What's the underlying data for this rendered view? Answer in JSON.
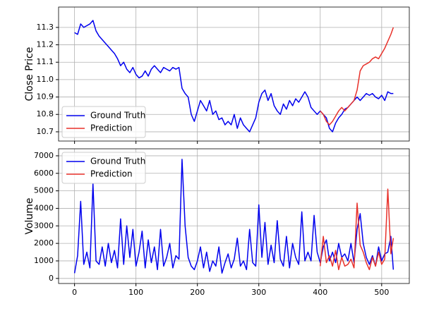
{
  "chart_data": [
    {
      "type": "line",
      "ylabel": "Close Price",
      "grid": true,
      "legend": "lower left",
      "xtick_labels": false,
      "xlim": [
        -26,
        545
      ],
      "xticks": [
        0,
        100,
        200,
        300,
        400,
        500
      ],
      "ylim": [
        10.647,
        11.417
      ],
      "yticks": [
        10.7,
        10.8,
        10.9,
        {
          "value": 11.0,
          "label": "11.0"
        },
        11.1,
        11.2,
        11.3
      ],
      "series": [
        {
          "name": "Ground Truth",
          "color": "#0000ee",
          "x": [
            0,
            5,
            10,
            15,
            20,
            25,
            30,
            35,
            40,
            45,
            50,
            55,
            60,
            65,
            70,
            75,
            80,
            85,
            90,
            95,
            100,
            105,
            110,
            115,
            120,
            125,
            130,
            135,
            140,
            145,
            150,
            155,
            160,
            165,
            170,
            175,
            180,
            185,
            190,
            195,
            200,
            205,
            210,
            215,
            220,
            225,
            230,
            235,
            240,
            245,
            250,
            255,
            260,
            265,
            270,
            275,
            280,
            285,
            290,
            295,
            300,
            305,
            310,
            315,
            320,
            325,
            330,
            335,
            340,
            345,
            350,
            355,
            360,
            365,
            370,
            375,
            380,
            385,
            390,
            395,
            400,
            405,
            410,
            415,
            420,
            425,
            430,
            435,
            440,
            445,
            450,
            455,
            460,
            465,
            470,
            475,
            480,
            485,
            490,
            495,
            500,
            505,
            510,
            515,
            519
          ],
          "values": [
            11.27,
            11.26,
            11.32,
            11.3,
            11.31,
            11.32,
            11.34,
            11.28,
            11.25,
            11.23,
            11.21,
            11.19,
            11.17,
            11.15,
            11.12,
            11.08,
            11.1,
            11.06,
            11.04,
            11.07,
            11.03,
            11.01,
            11.02,
            11.05,
            11.02,
            11.06,
            11.08,
            11.06,
            11.04,
            11.07,
            11.06,
            11.05,
            11.07,
            11.06,
            11.07,
            10.95,
            10.92,
            10.9,
            10.8,
            10.76,
            10.82,
            10.88,
            10.85,
            10.82,
            10.88,
            10.8,
            10.82,
            10.77,
            10.78,
            10.74,
            10.76,
            10.74,
            10.8,
            10.72,
            10.78,
            10.74,
            10.72,
            10.7,
            10.74,
            10.78,
            10.87,
            10.92,
            10.94,
            10.88,
            10.92,
            10.85,
            10.82,
            10.8,
            10.86,
            10.83,
            10.88,
            10.85,
            10.89,
            10.87,
            10.9,
            10.93,
            10.9,
            10.84,
            10.82,
            10.8,
            10.82,
            10.8,
            10.78,
            10.72,
            10.7,
            10.75,
            10.78,
            10.8,
            10.83,
            10.84,
            10.86,
            10.88,
            10.9,
            10.88,
            10.9,
            10.92,
            10.91,
            10.92,
            10.9,
            10.89,
            10.91,
            10.88,
            10.93,
            10.92,
            10.92
          ]
        },
        {
          "name": "Prediction",
          "color": "#e8312a",
          "x": [
            400,
            405,
            410,
            415,
            420,
            425,
            430,
            435,
            440,
            445,
            450,
            455,
            460,
            465,
            470,
            475,
            480,
            485,
            490,
            495,
            500,
            505,
            510,
            515,
            519
          ],
          "values": [
            10.82,
            10.8,
            10.76,
            10.74,
            10.76,
            10.79,
            10.82,
            10.84,
            10.82,
            10.84,
            10.86,
            10.88,
            10.94,
            11.05,
            11.08,
            11.09,
            11.1,
            11.12,
            11.13,
            11.12,
            11.15,
            11.18,
            11.22,
            11.26,
            11.3
          ]
        }
      ]
    },
    {
      "type": "line",
      "ylabel": "Volume",
      "grid": true,
      "legend": "upper left",
      "xtick_labels": true,
      "xlim": [
        -26,
        545
      ],
      "xticks": [
        0,
        100,
        200,
        300,
        400,
        500
      ],
      "ylim": [
        -290,
        7400
      ],
      "yticks": [
        0,
        1000,
        2000,
        3000,
        4000,
        5000,
        6000,
        7000
      ],
      "series": [
        {
          "name": "Ground Truth",
          "color": "#0000ee",
          "x": [
            0,
            5,
            10,
            15,
            20,
            25,
            30,
            35,
            40,
            45,
            50,
            55,
            60,
            65,
            70,
            75,
            80,
            85,
            90,
            95,
            100,
            105,
            110,
            115,
            120,
            125,
            130,
            135,
            140,
            145,
            150,
            155,
            160,
            165,
            170,
            175,
            180,
            185,
            190,
            195,
            200,
            205,
            210,
            215,
            220,
            225,
            230,
            235,
            240,
            245,
            250,
            255,
            260,
            265,
            270,
            275,
            280,
            285,
            290,
            295,
            300,
            305,
            310,
            315,
            320,
            325,
            330,
            335,
            340,
            345,
            350,
            355,
            360,
            365,
            370,
            375,
            380,
            385,
            390,
            395,
            400,
            405,
            410,
            415,
            420,
            425,
            430,
            435,
            440,
            445,
            450,
            455,
            460,
            465,
            470,
            475,
            480,
            485,
            490,
            495,
            500,
            505,
            510,
            515,
            519
          ],
          "values": [
            300,
            1300,
            4400,
            800,
            1500,
            600,
            5400,
            1000,
            800,
            1800,
            700,
            2000,
            900,
            1600,
            600,
            3400,
            800,
            3000,
            1200,
            2800,
            700,
            1500,
            2700,
            600,
            2200,
            900,
            1800,
            500,
            2800,
            700,
            1200,
            2000,
            600,
            1300,
            1100,
            6800,
            3000,
            1200,
            700,
            500,
            1000,
            1800,
            600,
            1500,
            400,
            1000,
            700,
            1800,
            300,
            900,
            1400,
            600,
            1100,
            2300,
            700,
            1000,
            500,
            2800,
            900,
            700,
            4200,
            1200,
            3200,
            800,
            1900,
            900,
            3300,
            1100,
            700,
            2400,
            600,
            2000,
            1200,
            800,
            3800,
            1000,
            1500,
            1000,
            3600,
            1500,
            900,
            1800,
            2200,
            1000,
            1500,
            900,
            2000,
            1200,
            1400,
            1000,
            2000,
            900,
            2800,
            3700,
            2000,
            1200,
            800,
            1300,
            700,
            1800,
            1000,
            1400,
            1500,
            2400,
            500
          ]
        },
        {
          "name": "Prediction",
          "color": "#e8312a",
          "x": [
            400,
            405,
            410,
            415,
            420,
            425,
            430,
            435,
            440,
            445,
            450,
            455,
            460,
            465,
            470,
            475,
            480,
            485,
            490,
            495,
            500,
            505,
            510,
            515,
            519
          ],
          "values": [
            700,
            2400,
            900,
            1300,
            700,
            1600,
            500,
            1200,
            700,
            800,
            1100,
            600,
            4300,
            1900,
            1500,
            900,
            500,
            1200,
            700,
            1500,
            800,
            1100,
            5100,
            1400,
            2300
          ]
        }
      ]
    }
  ]
}
